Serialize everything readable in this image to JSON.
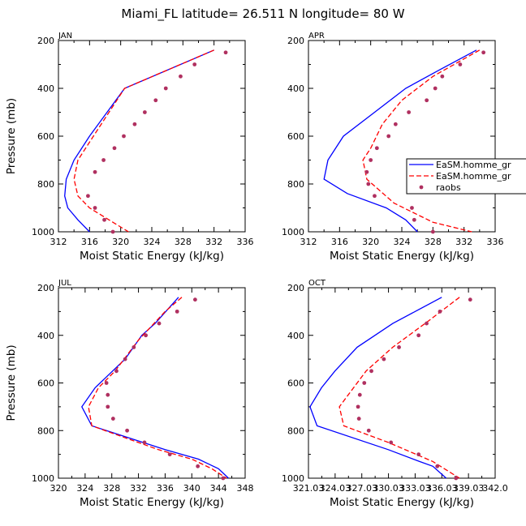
{
  "figure": {
    "title": "Miami_FL  latitude= 26.511 N longitude= 80 W",
    "xlabel": "Moist Static Energy (kJ/kg)",
    "ylabel": "Pressure (mb)",
    "legend": {
      "placement": "right of APR panel, clipped",
      "entries": [
        {
          "label": "EaSM.homme_gr",
          "style": "solid line",
          "color": "#0000ff"
        },
        {
          "label": "EaSM.homme_gr",
          "style": "dashed line",
          "color": "#ff0000"
        },
        {
          "label": "raobs",
          "style": "dots",
          "color": "#b03060"
        }
      ]
    }
  },
  "colors": {
    "model_solid": "#0000ff",
    "model_dashed": "#ff0000",
    "raobs": "#b03060"
  },
  "chart_data": [
    {
      "type": "line",
      "title": "JAN",
      "xlim": [
        312,
        336
      ],
      "ylim": [
        1000,
        200
      ],
      "xticks": [
        "312",
        "316",
        "320",
        "324",
        "328",
        "332",
        "336"
      ],
      "yticks": [
        "200",
        "400",
        "600",
        "800",
        "1000"
      ],
      "series": [
        {
          "style": "solid",
          "points": [
            [
              332,
              240
            ],
            [
              320.5,
              400
            ],
            [
              316,
              600
            ],
            [
              314,
              700
            ],
            [
              313,
              780
            ],
            [
              312.8,
              850
            ],
            [
              313.2,
              900
            ],
            [
              314.5,
              950
            ],
            [
              316,
              1000
            ]
          ]
        },
        {
          "style": "dashed",
          "points": [
            [
              332,
              240
            ],
            [
              320.5,
              400
            ],
            [
              316.5,
              600
            ],
            [
              314.5,
              700
            ],
            [
              314,
              780
            ],
            [
              314.5,
              850
            ],
            [
              316,
              900
            ],
            [
              318.5,
              950
            ],
            [
              321,
              1000
            ]
          ]
        },
        {
          "style": "dots",
          "points": [
            [
              333.5,
              250
            ],
            [
              329.5,
              300
            ],
            [
              327.7,
              350
            ],
            [
              325.8,
              400
            ],
            [
              324.5,
              450
            ],
            [
              323.1,
              500
            ],
            [
              321.8,
              550
            ],
            [
              320.4,
              600
            ],
            [
              319.2,
              650
            ],
            [
              317.8,
              700
            ],
            [
              316.7,
              750
            ],
            [
              315.8,
              850
            ],
            [
              316.7,
              900
            ],
            [
              317.9,
              950
            ],
            [
              319,
              1000
            ]
          ]
        }
      ]
    },
    {
      "type": "line",
      "title": "APR",
      "xlim": [
        312,
        336
      ],
      "ylim": [
        1000,
        200
      ],
      "xticks": [
        "312",
        "316",
        "320",
        "324",
        "328",
        "332",
        "336"
      ],
      "yticks": [
        "200",
        "400",
        "600",
        "800",
        "1000"
      ],
      "series": [
        {
          "style": "solid",
          "points": [
            [
              333.6,
              240
            ],
            [
              329,
              320
            ],
            [
              324.5,
              400
            ],
            [
              320.5,
              500
            ],
            [
              316.5,
              600
            ],
            [
              314.5,
              700
            ],
            [
              314,
              780
            ],
            [
              317,
              840
            ],
            [
              322,
              900
            ],
            [
              324.5,
              950
            ],
            [
              326,
              1000
            ]
          ]
        },
        {
          "style": "dashed",
          "points": [
            [
              334,
              240
            ],
            [
              328,
              350
            ],
            [
              324,
              450
            ],
            [
              321.5,
              550
            ],
            [
              320,
              650
            ],
            [
              319,
              700
            ],
            [
              319.5,
              780
            ],
            [
              323,
              880
            ],
            [
              328,
              960
            ],
            [
              333,
              1000
            ]
          ]
        },
        {
          "style": "dots",
          "points": [
            [
              334.5,
              250
            ],
            [
              331.5,
              300
            ],
            [
              329.2,
              350
            ],
            [
              328.3,
              400
            ],
            [
              327.2,
              450
            ],
            [
              324.9,
              500
            ],
            [
              323.2,
              550
            ],
            [
              322.3,
              600
            ],
            [
              320.8,
              650
            ],
            [
              320,
              700
            ],
            [
              319.5,
              750
            ],
            [
              319.7,
              800
            ],
            [
              320.5,
              850
            ],
            [
              325.3,
              900
            ],
            [
              325.6,
              950
            ],
            [
              328,
              1000
            ]
          ]
        }
      ]
    },
    {
      "type": "line",
      "title": "JUL",
      "xlim": [
        320,
        348
      ],
      "ylim": [
        1000,
        200
      ],
      "xticks": [
        "320",
        "324",
        "328",
        "332",
        "336",
        "340",
        "344",
        "348"
      ],
      "yticks": [
        "200",
        "400",
        "600",
        "800",
        "1000"
      ],
      "series": [
        {
          "style": "solid",
          "points": [
            [
              338,
              240
            ],
            [
              334.5,
              350
            ],
            [
              332.5,
              400
            ],
            [
              330,
              500
            ],
            [
              325.5,
              620
            ],
            [
              323.5,
              700
            ],
            [
              325,
              780
            ],
            [
              336,
              880
            ],
            [
              341,
              920
            ],
            [
              344,
              960
            ],
            [
              345.5,
              1000
            ]
          ]
        },
        {
          "style": "dashed",
          "points": [
            [
              338.5,
              240
            ],
            [
              336,
              300
            ],
            [
              332,
              420
            ],
            [
              328.5,
              550
            ],
            [
              326,
              620
            ],
            [
              324.5,
              700
            ],
            [
              325,
              780
            ],
            [
              335,
              880
            ],
            [
              340,
              920
            ],
            [
              343,
              960
            ],
            [
              345.2,
              1000
            ]
          ]
        },
        {
          "style": "dots",
          "points": [
            [
              340.5,
              250
            ],
            [
              337.8,
              300
            ],
            [
              335.1,
              350
            ],
            [
              333.1,
              400
            ],
            [
              331.3,
              450
            ],
            [
              330,
              500
            ],
            [
              328.7,
              550
            ],
            [
              327.2,
              600
            ],
            [
              327.4,
              650
            ],
            [
              327.4,
              700
            ],
            [
              328.2,
              750
            ],
            [
              330.3,
              800
            ],
            [
              332.9,
              850
            ],
            [
              336.7,
              900
            ],
            [
              340.9,
              950
            ],
            [
              344.7,
              1000
            ]
          ]
        }
      ]
    },
    {
      "type": "line",
      "title": "OCT",
      "xlim": [
        321.03,
        342
      ],
      "ylim": [
        1000,
        200
      ],
      "xticks": [
        "321.03",
        "324.03",
        "327.03",
        "330.03",
        "333.03",
        "336.03",
        "339.03",
        "342.0"
      ],
      "yticks": [
        "200",
        "400",
        "600",
        "800",
        "1000"
      ],
      "series": [
        {
          "style": "solid",
          "points": [
            [
              336,
              240
            ],
            [
              330.5,
              350
            ],
            [
              326.5,
              450
            ],
            [
              324,
              550
            ],
            [
              322.5,
              620
            ],
            [
              321.2,
              700
            ],
            [
              322,
              780
            ],
            [
              330,
              880
            ],
            [
              333.5,
              930
            ],
            [
              335,
              950
            ],
            [
              336.5,
              1000
            ]
          ]
        },
        {
          "style": "dashed",
          "points": [
            [
              338,
              240
            ],
            [
              334.5,
              340
            ],
            [
              330.5,
              450
            ],
            [
              327.5,
              550
            ],
            [
              325.5,
              650
            ],
            [
              324.5,
              700
            ],
            [
              325,
              780
            ],
            [
              330,
              850
            ],
            [
              335,
              930
            ],
            [
              338,
              1000
            ]
          ]
        },
        {
          "style": "dots",
          "points": [
            [
              339.2,
              250
            ],
            [
              335.8,
              300
            ],
            [
              334.3,
              350
            ],
            [
              333.4,
              400
            ],
            [
              331.2,
              450
            ],
            [
              329.5,
              500
            ],
            [
              328.1,
              550
            ],
            [
              327.3,
              600
            ],
            [
              326.8,
              650
            ],
            [
              326.6,
              700
            ],
            [
              326.7,
              750
            ],
            [
              327.8,
              800
            ],
            [
              330.3,
              850
            ],
            [
              333.4,
              900
            ],
            [
              335.5,
              950
            ],
            [
              337.6,
              1000
            ]
          ]
        }
      ]
    }
  ]
}
